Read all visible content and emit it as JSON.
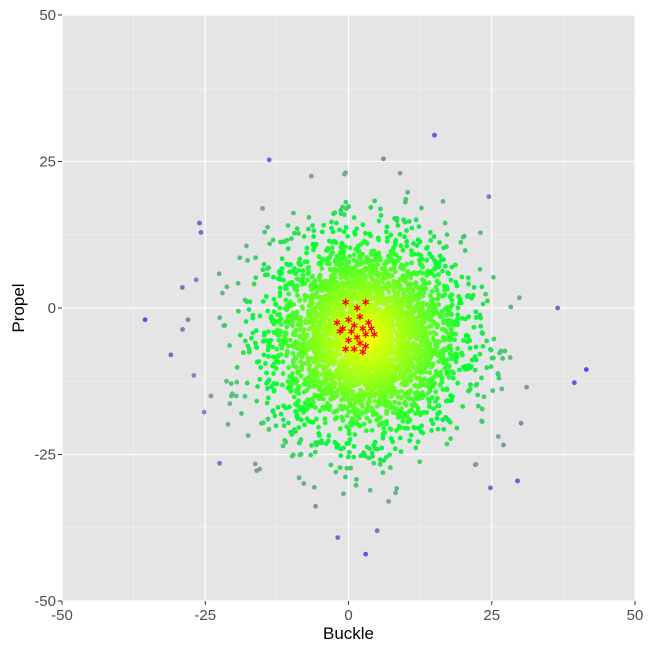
{
  "chart_data": {
    "type": "scatter",
    "title": "",
    "xlabel": "Buckle",
    "ylabel": "Propel",
    "xlim": [
      -50,
      50
    ],
    "ylim": [
      -50,
      50
    ],
    "x_ticks": [
      -50,
      -25,
      0,
      25,
      50
    ],
    "y_ticks": [
      -50,
      -25,
      0,
      25,
      50
    ],
    "x_tick_labels": [
      "-50",
      "-25",
      "0",
      "25",
      "50"
    ],
    "y_tick_labels": [
      "-50",
      "-25",
      "0",
      "25",
      "50"
    ],
    "grid": true,
    "legend": "none",
    "panel_background": "#e5e5e5",
    "density_color_scale": [
      "#ffff00",
      "#00ff33",
      "#7f9f9f",
      "#6633ff"
    ],
    "cloud": {
      "description_of_generation": null,
      "center": [
        3,
        -5
      ],
      "spread_sd": [
        8.5,
        8.5
      ],
      "n_points": 3500,
      "marker": "circle"
    },
    "outliers": [
      {
        "x": 15,
        "y": 29.5
      },
      {
        "x": -35.5,
        "y": -2
      },
      {
        "x": -31,
        "y": -8
      },
      {
        "x": -29,
        "y": 3.5
      },
      {
        "x": -28,
        "y": -2
      },
      {
        "x": -27,
        "y": -11.5
      },
      {
        "x": -26,
        "y": 14.5
      },
      {
        "x": -24,
        "y": -15
      },
      {
        "x": -22.5,
        "y": -26.5
      },
      {
        "x": -15.5,
        "y": -27.5
      },
      {
        "x": -15,
        "y": 17
      },
      {
        "x": -6.5,
        "y": 22.5
      },
      {
        "x": 9,
        "y": 23
      },
      {
        "x": 24.5,
        "y": 19
      },
      {
        "x": 29.5,
        "y": -29.5
      },
      {
        "x": 36.5,
        "y": 0
      },
      {
        "x": 41.5,
        "y": -10.5
      },
      {
        "x": 7,
        "y": -33
      },
      {
        "x": 5,
        "y": -38
      },
      {
        "x": 3,
        "y": -42
      }
    ],
    "highlight_series": {
      "marker": "asterisk",
      "color": "#ff0000",
      "points": [
        {
          "x": -0.5,
          "y": 1
        },
        {
          "x": 1.5,
          "y": 0
        },
        {
          "x": 3,
          "y": 1
        },
        {
          "x": 0,
          "y": -2
        },
        {
          "x": -2,
          "y": -2.5
        },
        {
          "x": 2,
          "y": -1.5
        },
        {
          "x": 3.5,
          "y": -2.5
        },
        {
          "x": 1,
          "y": -3
        },
        {
          "x": -1,
          "y": -3.5
        },
        {
          "x": 2.5,
          "y": -3.5
        },
        {
          "x": 4,
          "y": -3.5
        },
        {
          "x": 0.5,
          "y": -4
        },
        {
          "x": -1.5,
          "y": -4
        },
        {
          "x": 3,
          "y": -4.5
        },
        {
          "x": 1.5,
          "y": -5
        },
        {
          "x": 4.5,
          "y": -4.5
        },
        {
          "x": 0,
          "y": -5.5
        },
        {
          "x": 2,
          "y": -6
        },
        {
          "x": 3,
          "y": -6.5
        },
        {
          "x": 1,
          "y": -7
        },
        {
          "x": -0.5,
          "y": -7
        },
        {
          "x": 2.5,
          "y": -7.5
        }
      ]
    }
  }
}
